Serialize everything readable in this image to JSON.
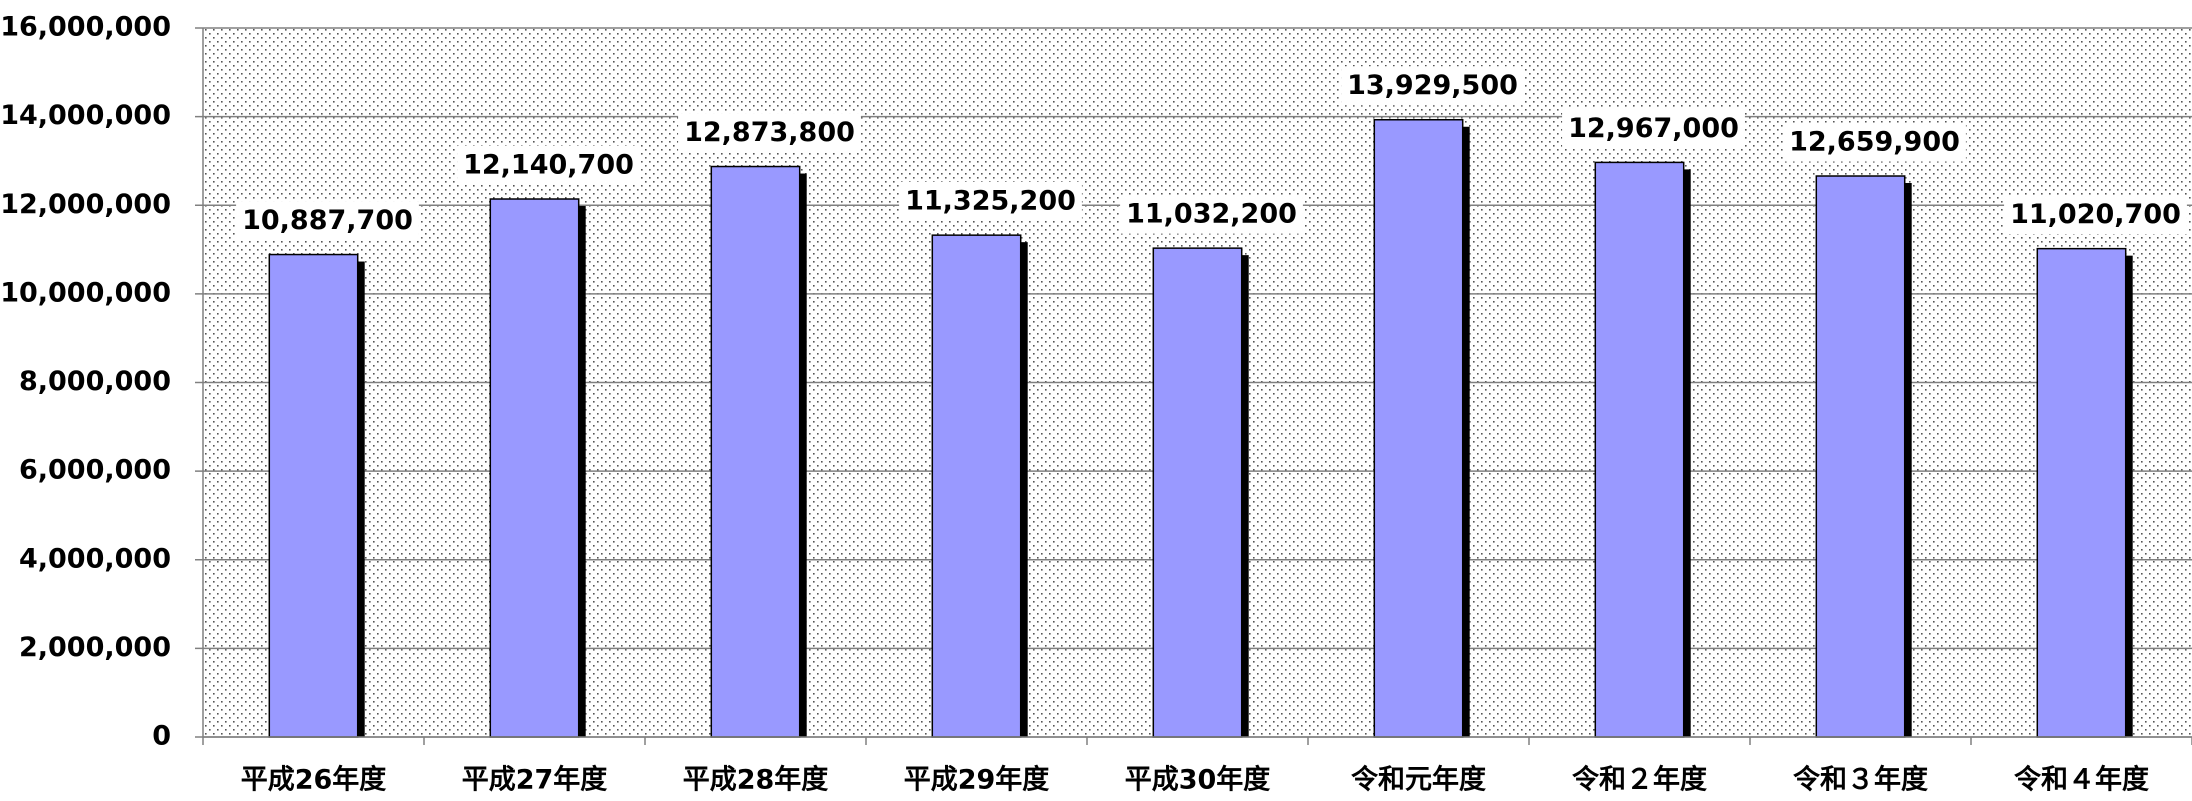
{
  "chart_data": {
    "type": "bar",
    "categories": [
      "平成26年度",
      "平成27年度",
      "平成28年度",
      "平成29年度",
      "平成30年度",
      "令和元年度",
      "令和２年度",
      "令和３年度",
      "令和４年度"
    ],
    "values": [
      10887700,
      12140700,
      12873800,
      11325200,
      11032200,
      13929500,
      12967000,
      12659900,
      11020700
    ],
    "value_labels": [
      "10,887,700",
      "12,140,700",
      "12,873,800",
      "11,325,200",
      "11,032,200",
      "13,929,500",
      "12,967,000",
      "12,659,900",
      "11,020,700"
    ],
    "color": "#9999ff",
    "ylim": [
      0,
      16000000
    ],
    "yticks": [
      0,
      {
        "value": 2000000,
        "label": "2,000,000"
      },
      {
        "value": 4000000,
        "label": "4,000,000"
      },
      {
        "value": 6000000,
        "label": "6,000,000"
      },
      {
        "value": 8000000,
        "label": "8,000,000"
      },
      {
        "value": 10000000,
        "label": "10,000,000"
      },
      {
        "value": 12000000,
        "label": "12,000,000"
      },
      {
        "value": 14000000,
        "label": "14,000,000"
      },
      {
        "value": 16000000,
        "label": "16,000,000"
      }
    ],
    "grid": true
  }
}
